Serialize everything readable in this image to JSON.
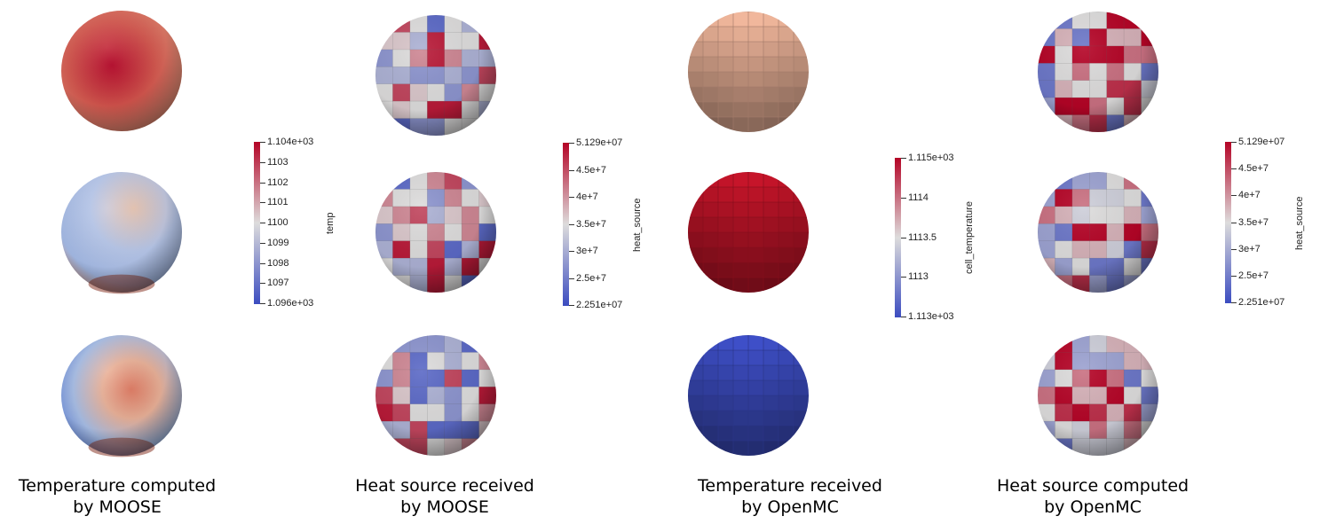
{
  "captions": [
    {
      "line1": "Temperature computed",
      "line2": "by MOOSE"
    },
    {
      "line1": "Heat source received",
      "line2": "by MOOSE"
    },
    {
      "line1": "Temperature received",
      "line2": "by OpenMC"
    },
    {
      "line1": "Heat source computed",
      "line2": "by OpenMC"
    }
  ],
  "colorbars": [
    {
      "title": "temp",
      "ticks": [
        "1.104e+03",
        "1103",
        "1102",
        "1101",
        "1100",
        "1099",
        "1098",
        "1097",
        "1.096e+03"
      ]
    },
    {
      "title": "heat_source",
      "ticks": [
        "5.129e+07",
        "4.5e+7",
        "4e+7",
        "3.5e+7",
        "3e+7",
        "2.5e+7",
        "2.251e+07"
      ]
    },
    {
      "title": "cell_temperature",
      "ticks": [
        "1.115e+03",
        "1114",
        "1113.5",
        "1113",
        "1.113e+03"
      ]
    },
    {
      "title": "heat_source",
      "ticks": [
        "5.129e+07",
        "4.5e+7",
        "4e+7",
        "3.5e+7",
        "3e+7",
        "2.5e+7",
        "2.251e+07"
      ]
    }
  ],
  "colors": {
    "cool": "#3b4cc0",
    "neutral": "#dddcdc",
    "warm": "#b40426"
  }
}
